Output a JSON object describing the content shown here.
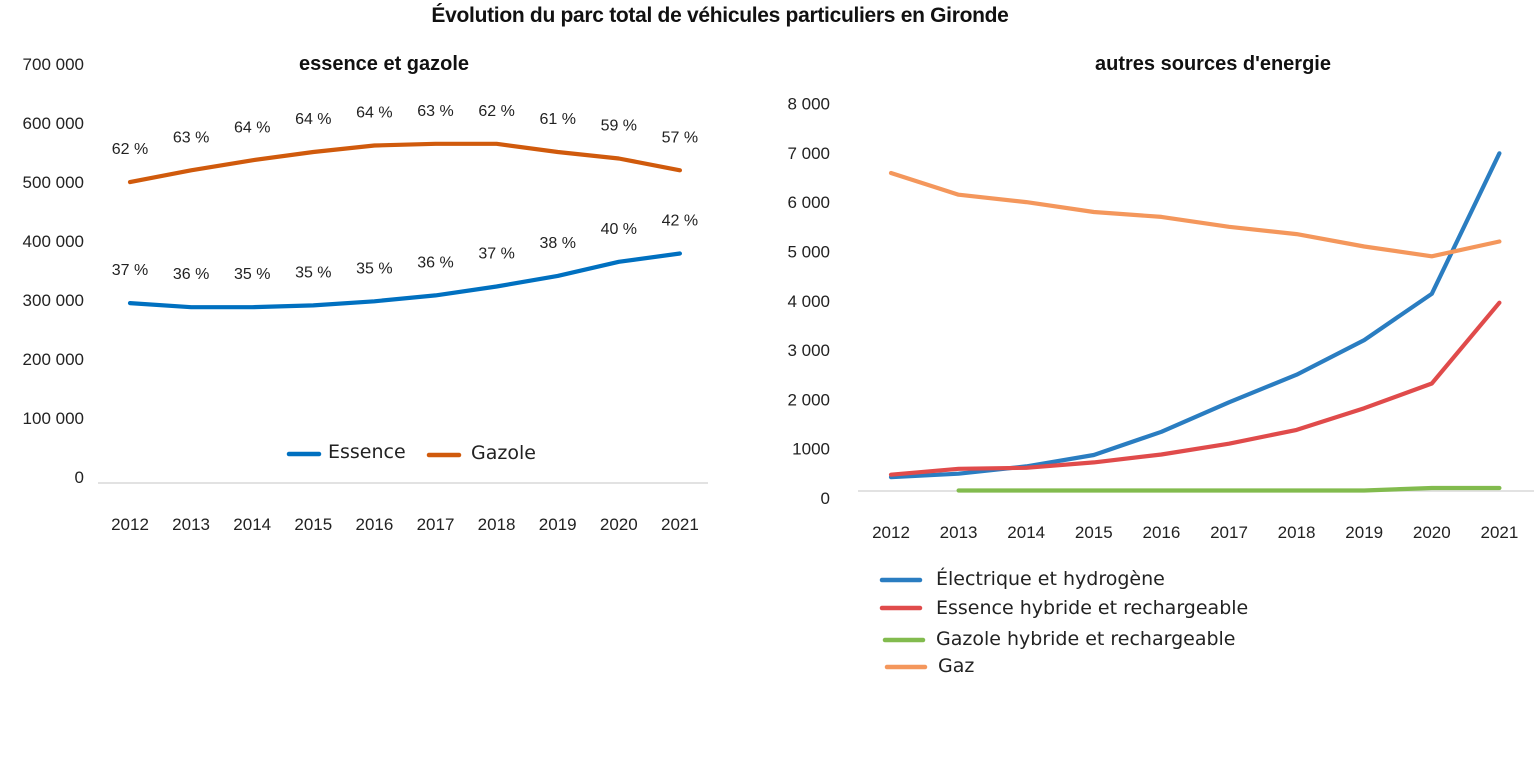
{
  "title": "Évolution du parc total de véhicules particuliers en Gironde",
  "chart_data": [
    {
      "type": "line",
      "title": "essence et gazole",
      "xlabel": "",
      "ylabel": "",
      "x": [
        "2012",
        "2013",
        "2014",
        "2015",
        "2016",
        "2017",
        "2018",
        "2019",
        "2020",
        "2021"
      ],
      "ylim": [
        0,
        700000
      ],
      "yticks": [
        0,
        100000,
        200000,
        300000,
        400000,
        500000,
        600000,
        700000
      ],
      "ytick_labels": [
        "0",
        "100 000",
        "200 000",
        "300 000",
        "400 000",
        "500 000",
        "600 000",
        "700 000"
      ],
      "grid": false,
      "legend": "bottom-center",
      "series": [
        {
          "name": "Essence",
          "color": "#0070C0",
          "values": [
            305000,
            298000,
            298000,
            301000,
            308000,
            318000,
            333000,
            351000,
            375000,
            389000
          ],
          "data_labels": [
            "37 %",
            "36 %",
            "35 %",
            "35 %",
            "35 %",
            "36 %",
            "37 %",
            "38 %",
            "40 %",
            "42 %"
          ]
        },
        {
          "name": "Gazole",
          "color": "#D05A0C",
          "values": [
            510000,
            530000,
            547000,
            561000,
            572000,
            575000,
            575000,
            561000,
            550000,
            530000
          ],
          "data_labels": [
            "62 %",
            "63 %",
            "64 %",
            "64 %",
            "64 %",
            "63 %",
            "62 %",
            "61 %",
            "59 %",
            "57 %"
          ]
        }
      ]
    },
    {
      "type": "line",
      "title": "autres sources d'energie",
      "xlabel": "",
      "ylabel": "",
      "x": [
        "2012",
        "2013",
        "2014",
        "2015",
        "2016",
        "2017",
        "2018",
        "2019",
        "2020",
        "2021"
      ],
      "ylim": [
        0,
        8000
      ],
      "yticks": [
        0,
        1000,
        2000,
        3000,
        4000,
        5000,
        6000,
        7000,
        8000
      ],
      "ytick_labels": [
        "0",
        "1000",
        "2 000",
        "3 000",
        "4 000",
        "5 000",
        "6 000",
        "7 000",
        "8 000"
      ],
      "grid": false,
      "legend": "bottom-left",
      "series": [
        {
          "name": "Électrique et hydrogène",
          "color": "#2A7DC1",
          "values": [
            280,
            350,
            500,
            730,
            1200,
            1800,
            2360,
            3060,
            4000,
            6850
          ]
        },
        {
          "name": "Essence hybride et rechargeable",
          "color": "#E04B4B",
          "values": [
            330,
            450,
            470,
            580,
            740,
            960,
            1240,
            1680,
            2180,
            3820
          ]
        },
        {
          "name": "Gazole hybride et rechargeable",
          "color": "#82BB4E",
          "values": [
            null,
            10,
            10,
            10,
            10,
            10,
            10,
            10,
            60,
            60
          ]
        },
        {
          "name": "Gaz",
          "color": "#F4975C",
          "values": [
            6450,
            6010,
            5860,
            5660,
            5560,
            5360,
            5210,
            4960,
            4760,
            5060
          ]
        }
      ]
    }
  ]
}
